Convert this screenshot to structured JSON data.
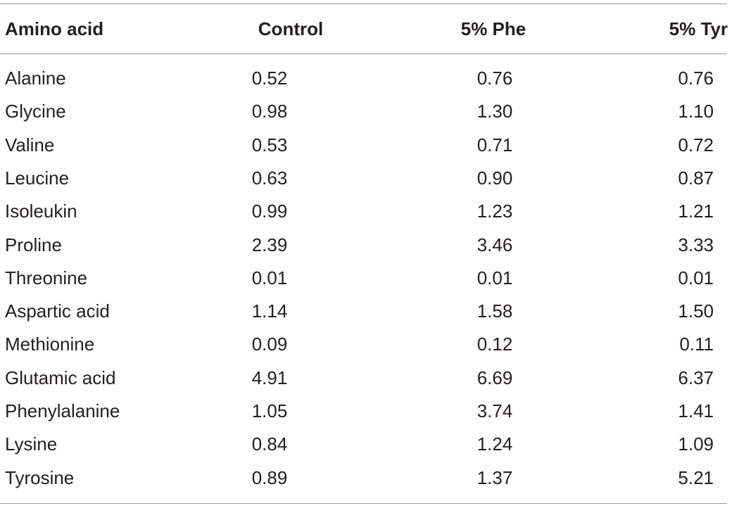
{
  "table": {
    "headers": [
      "Amino acid",
      "Control",
      "5% Phe",
      "5% Tyr"
    ],
    "rows": [
      [
        "Alanine",
        "0.52",
        "0.76",
        "0.76"
      ],
      [
        "Glycine",
        "0.98",
        "1.30",
        "1.10"
      ],
      [
        "Valine",
        "0.53",
        "0.71",
        "0.72"
      ],
      [
        "Leucine",
        "0.63",
        "0.90",
        "0.87"
      ],
      [
        "Isoleukin",
        "0.99",
        "1.23",
        "1.21"
      ],
      [
        "Proline",
        "2.39",
        "3.46",
        "3.33"
      ],
      [
        "Threonine",
        "0.01",
        "0.01",
        "0.01"
      ],
      [
        "Aspartic acid",
        "1.14",
        "1.58",
        "1.50"
      ],
      [
        "Methionine",
        "0.09",
        "0.12",
        "0.11"
      ],
      [
        "Glutamic acid",
        "4.91",
        "6.69",
        "6.37"
      ],
      [
        "Phenylalanine",
        "1.05",
        "3.74",
        "1.41"
      ],
      [
        "Lysine",
        "0.84",
        "1.24",
        "1.09"
      ],
      [
        "Tyrosine",
        "0.89",
        "1.37",
        "5.21"
      ]
    ]
  }
}
